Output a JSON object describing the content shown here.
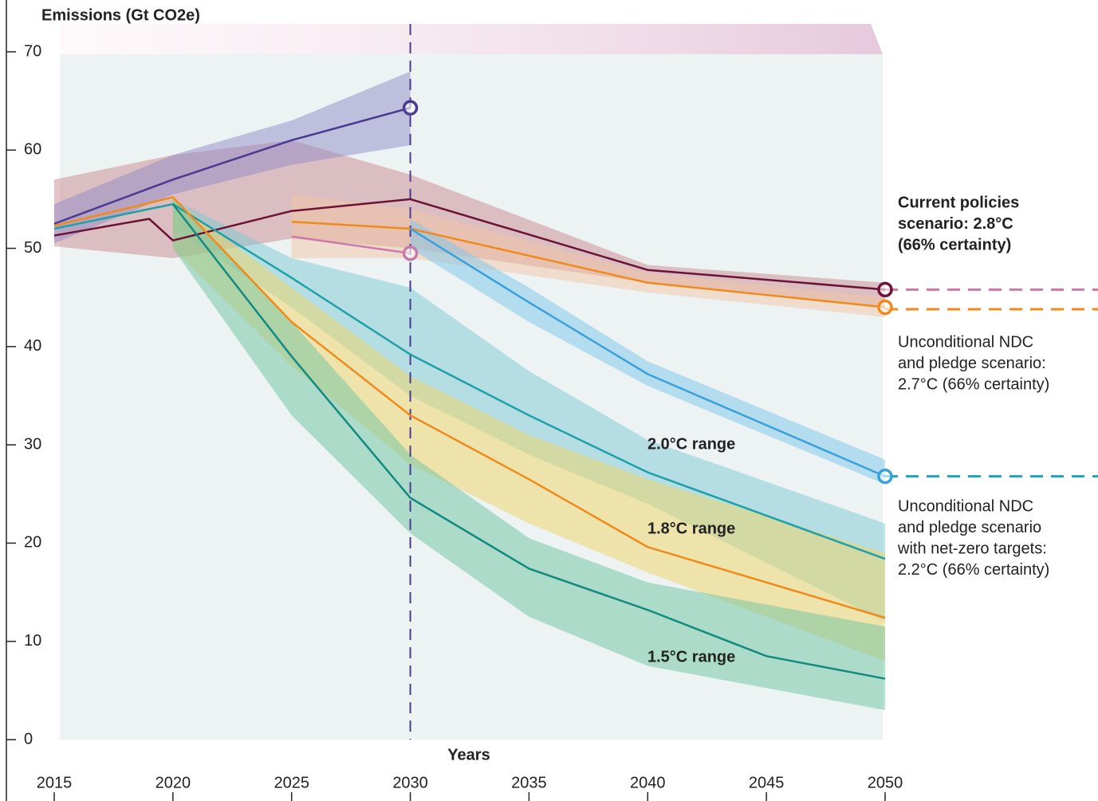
{
  "chart_data": {
    "type": "line",
    "title": "Emissions (Gt CO2e)",
    "x_label": "Years",
    "xlim": [
      2015,
      2050
    ],
    "xticks": [
      2015,
      2020,
      2025,
      2030,
      2035,
      2040,
      2045,
      2050
    ],
    "ylim": [
      0,
      70
    ],
    "yticks": [
      0,
      10,
      20,
      30,
      40,
      50,
      60,
      70
    ],
    "vline": 2030,
    "vline_color": "#4a3a91",
    "bands": [
      {
        "color": "#c98a90",
        "x": [
          2015,
          2020,
          2025,
          2030,
          2040,
          2050
        ],
        "low": [
          50.2,
          49,
          51,
          50,
          46.5,
          44
        ],
        "high": [
          57,
          59.5,
          61,
          57.5,
          48.3,
          46.5
        ]
      },
      {
        "color": "#8f8ac8",
        "x": [
          2015,
          2020,
          2025,
          2030
        ],
        "low": [
          50.5,
          55.5,
          58.5,
          60.5
        ],
        "high": [
          54.5,
          59.5,
          63,
          68
        ]
      },
      {
        "color": "#f4c6a6",
        "x": [
          2025,
          2030,
          2040,
          2050
        ],
        "low": [
          49,
          49,
          45.5,
          43
        ],
        "high": [
          55.5,
          54,
          47.5,
          45
        ]
      },
      {
        "color": "#7cc6ec",
        "x": [
          2030,
          2035,
          2040,
          2050
        ],
        "low": [
          50,
          42.5,
          36,
          26
        ],
        "high": [
          53,
          46,
          38.5,
          28.5
        ]
      },
      {
        "label": "2.0°C range",
        "color": "#7ccad4",
        "x": [
          2020,
          2025,
          2030,
          2035,
          2040,
          2050
        ],
        "low": [
          52,
          44,
          35,
          29,
          24,
          12
        ],
        "high": [
          55,
          49,
          46,
          37.5,
          30.5,
          22
        ]
      },
      {
        "label": "1.8°C range",
        "color": "#f0d464",
        "x": [
          2020,
          2025,
          2030,
          2035,
          2040,
          2050
        ],
        "low": [
          50,
          38,
          28,
          22,
          17,
          8
        ],
        "high": [
          55,
          46,
          37,
          31,
          26.5,
          19
        ]
      },
      {
        "label": "1.5°C range",
        "color": "#6cc4a2",
        "x": [
          2020,
          2025,
          2030,
          2035,
          2040,
          2050
        ],
        "low": [
          50,
          33,
          21,
          12.5,
          7.5,
          3
        ],
        "high": [
          55,
          42.5,
          29,
          20.5,
          16,
          11.5
        ]
      }
    ],
    "series": [
      {
        "color": "#4a3a91",
        "marker_end": true,
        "x": [
          2015,
          2020,
          2025,
          2030
        ],
        "values": [
          52.5,
          57,
          61,
          64.3
        ]
      },
      {
        "color": "#c97aab",
        "marker_end": true,
        "x": [
          2025,
          2030
        ],
        "values": [
          51.2,
          49.5
        ]
      },
      {
        "color": "#6b1237",
        "marker_end": true,
        "x": [
          2015,
          2019,
          2020,
          2025,
          2030,
          2040,
          2050
        ],
        "values": [
          51.3,
          53,
          50.8,
          53.8,
          55,
          47.8,
          45.8
        ]
      },
      {
        "color": "#f08a1c",
        "marker_end": true,
        "x": [
          2025,
          2030,
          2040,
          2050
        ],
        "values": [
          52.7,
          52,
          46.5,
          44
        ]
      },
      {
        "color": "#3aa0dc",
        "marker_end": true,
        "x": [
          2030,
          2035,
          2040,
          2050
        ],
        "values": [
          52,
          44.5,
          37.2,
          26.8
        ]
      },
      {
        "color": "#1fa0a8",
        "x": [
          2015,
          2020,
          2025,
          2030,
          2035,
          2040,
          2050
        ],
        "values": [
          52,
          54.5,
          47,
          39.2,
          33,
          27.2,
          18.4
        ]
      },
      {
        "color": "#f08a1c",
        "x": [
          2015,
          2020,
          2025,
          2030,
          2035,
          2040,
          2050
        ],
        "values": [
          52.3,
          55.2,
          42.5,
          33,
          26.5,
          19.6,
          12.4
        ]
      },
      {
        "color": "#138a80",
        "x": [
          2020,
          2025,
          2030,
          2035,
          2040,
          2045,
          2050
        ],
        "values": [
          54.5,
          39,
          24.6,
          17.4,
          13.2,
          8.5,
          6.2
        ]
      }
    ],
    "reference_lines": [
      {
        "value": 45.8,
        "color": "#c97aab"
      },
      {
        "value": 43.8,
        "color": "#f08a1c"
      },
      {
        "value": 26.8,
        "color": "#1fa3c0"
      }
    ],
    "annotations": [
      {
        "bold": true,
        "lines": [
          "Current policies",
          "scenario: 2.8°C",
          "(66% certainty)"
        ]
      },
      {
        "bold": false,
        "lines": [
          "Unconditional NDC",
          "and pledge scenario:",
          "2.7°C (66% certainty)"
        ]
      },
      {
        "bold": false,
        "lines": [
          "Unconditional NDC",
          "and pledge scenario",
          "with net-zero targets:",
          "2.2°C (66% certainty)"
        ]
      }
    ]
  }
}
